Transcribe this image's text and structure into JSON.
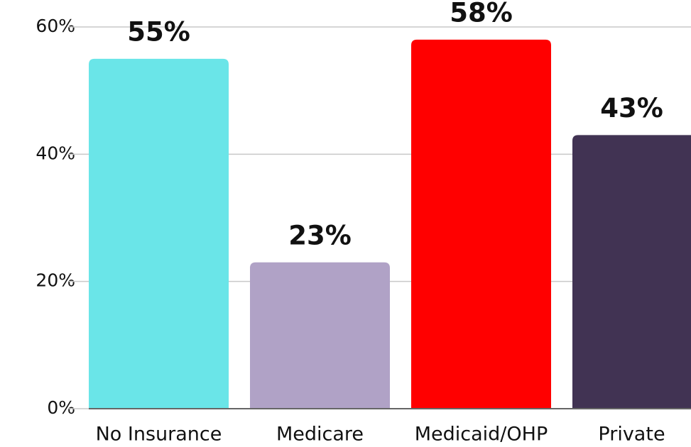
{
  "chart_data": {
    "type": "bar",
    "categories": [
      "No Insurance",
      "Medicare",
      "Medicaid/OHP",
      "Private"
    ],
    "values": [
      55,
      23,
      58,
      43
    ],
    "value_labels": [
      "55%",
      "23%",
      "58%",
      "43%"
    ],
    "colors": [
      "#6ae5e8",
      "#b0a2c6",
      "#ff0000",
      "#413353"
    ],
    "ylim": [
      0,
      60
    ],
    "yticks": [
      {
        "value": 0,
        "label": "0%"
      },
      {
        "value": 20,
        "label": "20%"
      },
      {
        "value": 40,
        "label": "40%"
      },
      {
        "value": 60,
        "label": "60%"
      }
    ],
    "grid": true
  }
}
